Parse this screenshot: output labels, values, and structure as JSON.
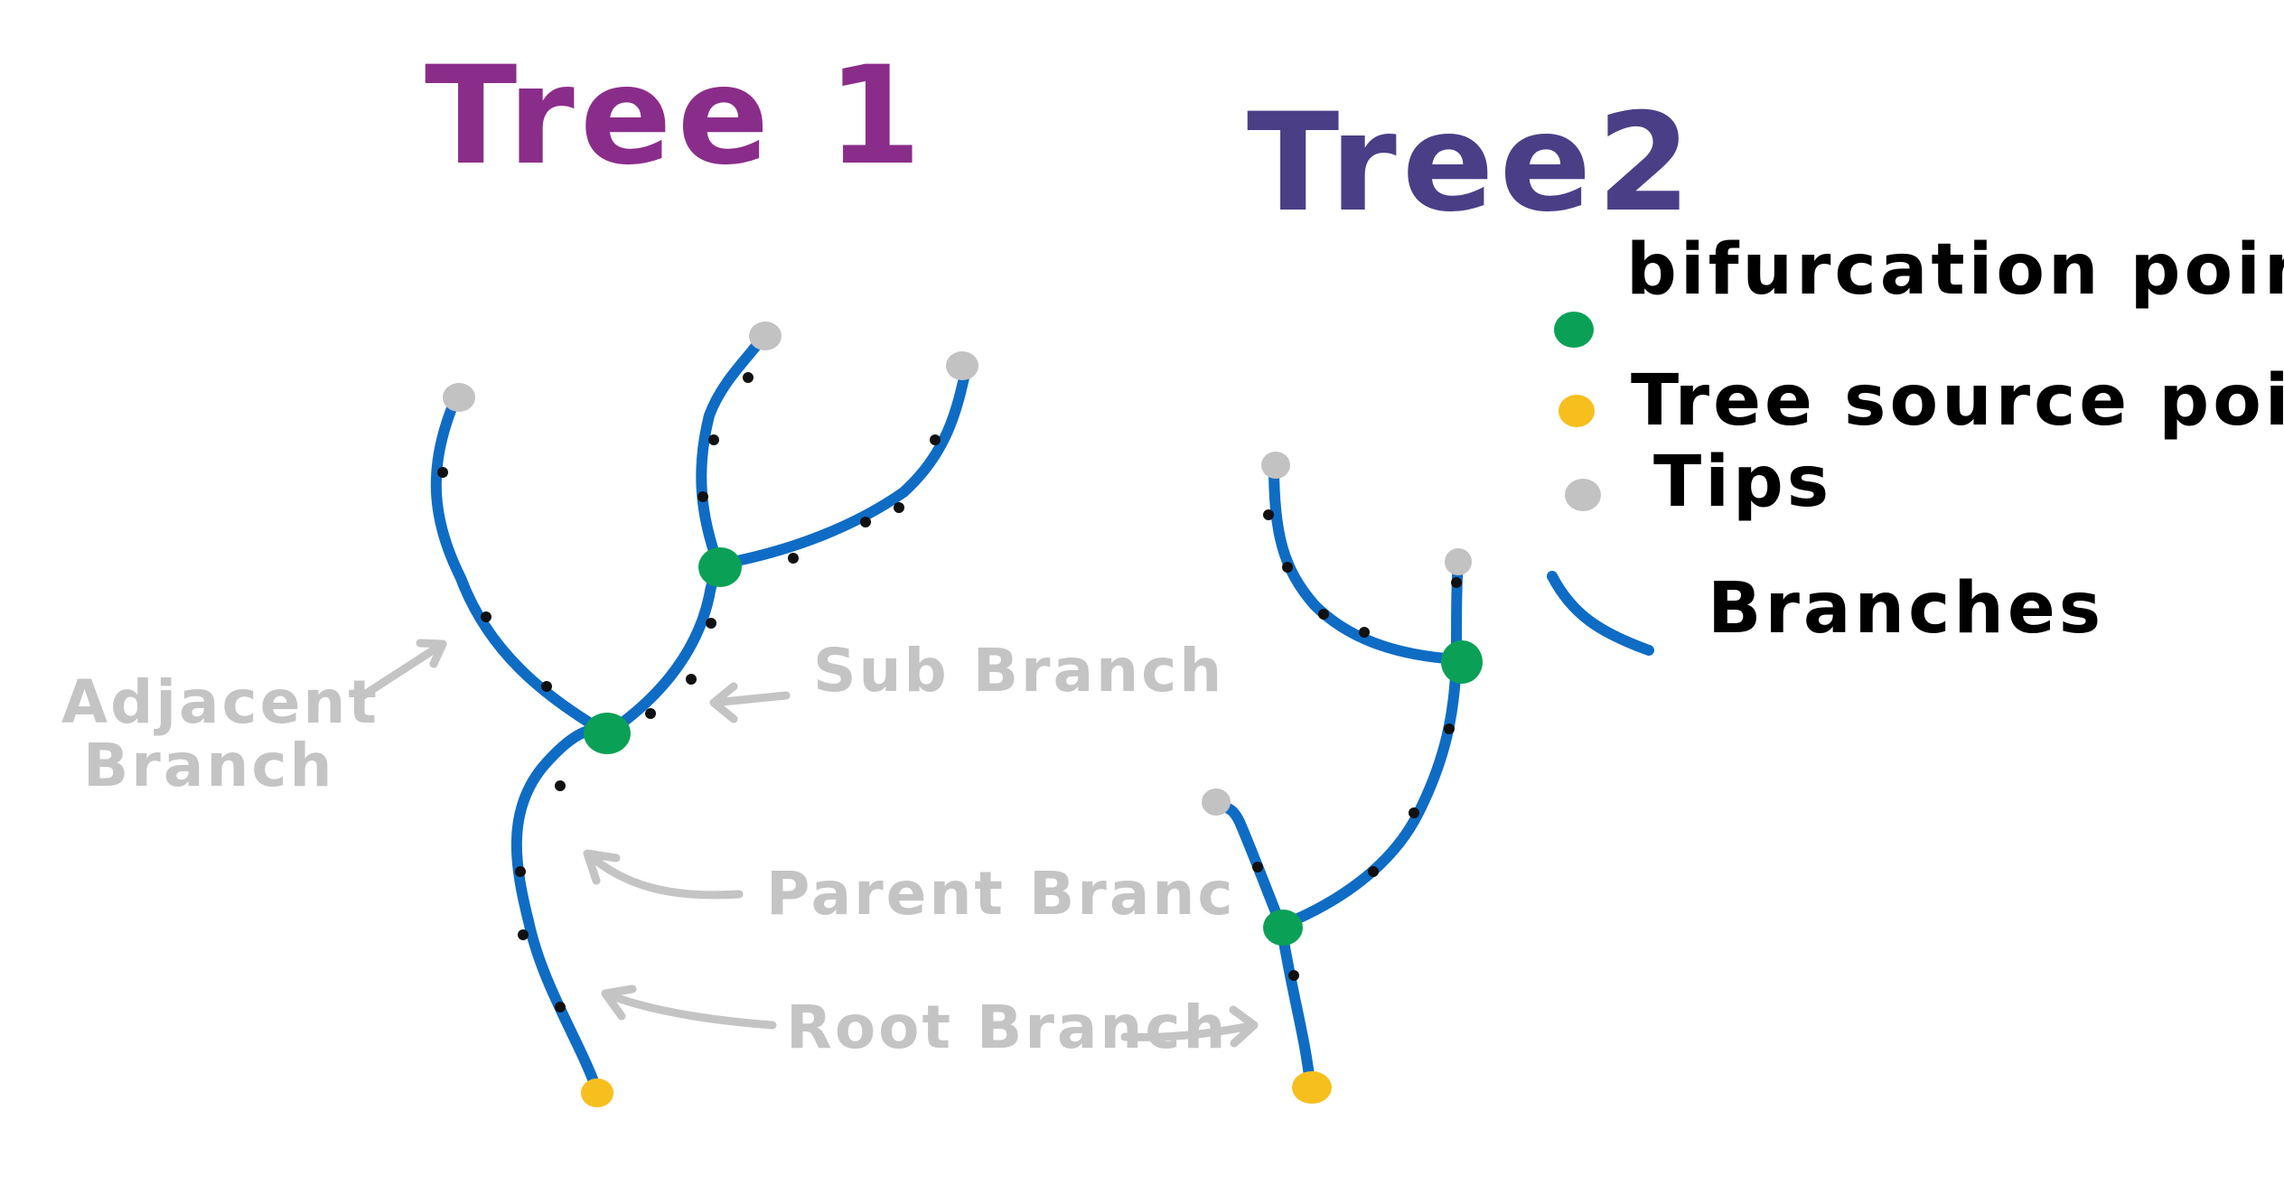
{
  "colors": {
    "branch": "#0f6cc4",
    "bifurcation": "#0aa156",
    "source": "#f7bf1e",
    "tip": "#c2c2c2",
    "sample_dot": "#111111",
    "annotation": "#c4c4c4",
    "title1": "#8a2d8a",
    "title2": "#4a3f86",
    "legend_text": "#000000"
  },
  "trees": [
    {
      "title": "Tree 1"
    },
    {
      "title": "Tree2"
    }
  ],
  "legend": {
    "items": [
      {
        "label": "bifurcation point",
        "icon": "bifurcation-dot-icon"
      },
      {
        "label": "Tree  source point",
        "icon": "source-dot-icon"
      },
      {
        "label": "Tips",
        "icon": "tip-dot-icon"
      },
      {
        "label": "Branches",
        "icon": "branch-line-icon"
      }
    ]
  },
  "annotations": {
    "adjacent_line1": "Adjacent",
    "adjacent_line2": "Branch",
    "sub_branch": "Sub Branch",
    "parent_branch": "Parent Branc",
    "root_branch": "Root Branch"
  }
}
